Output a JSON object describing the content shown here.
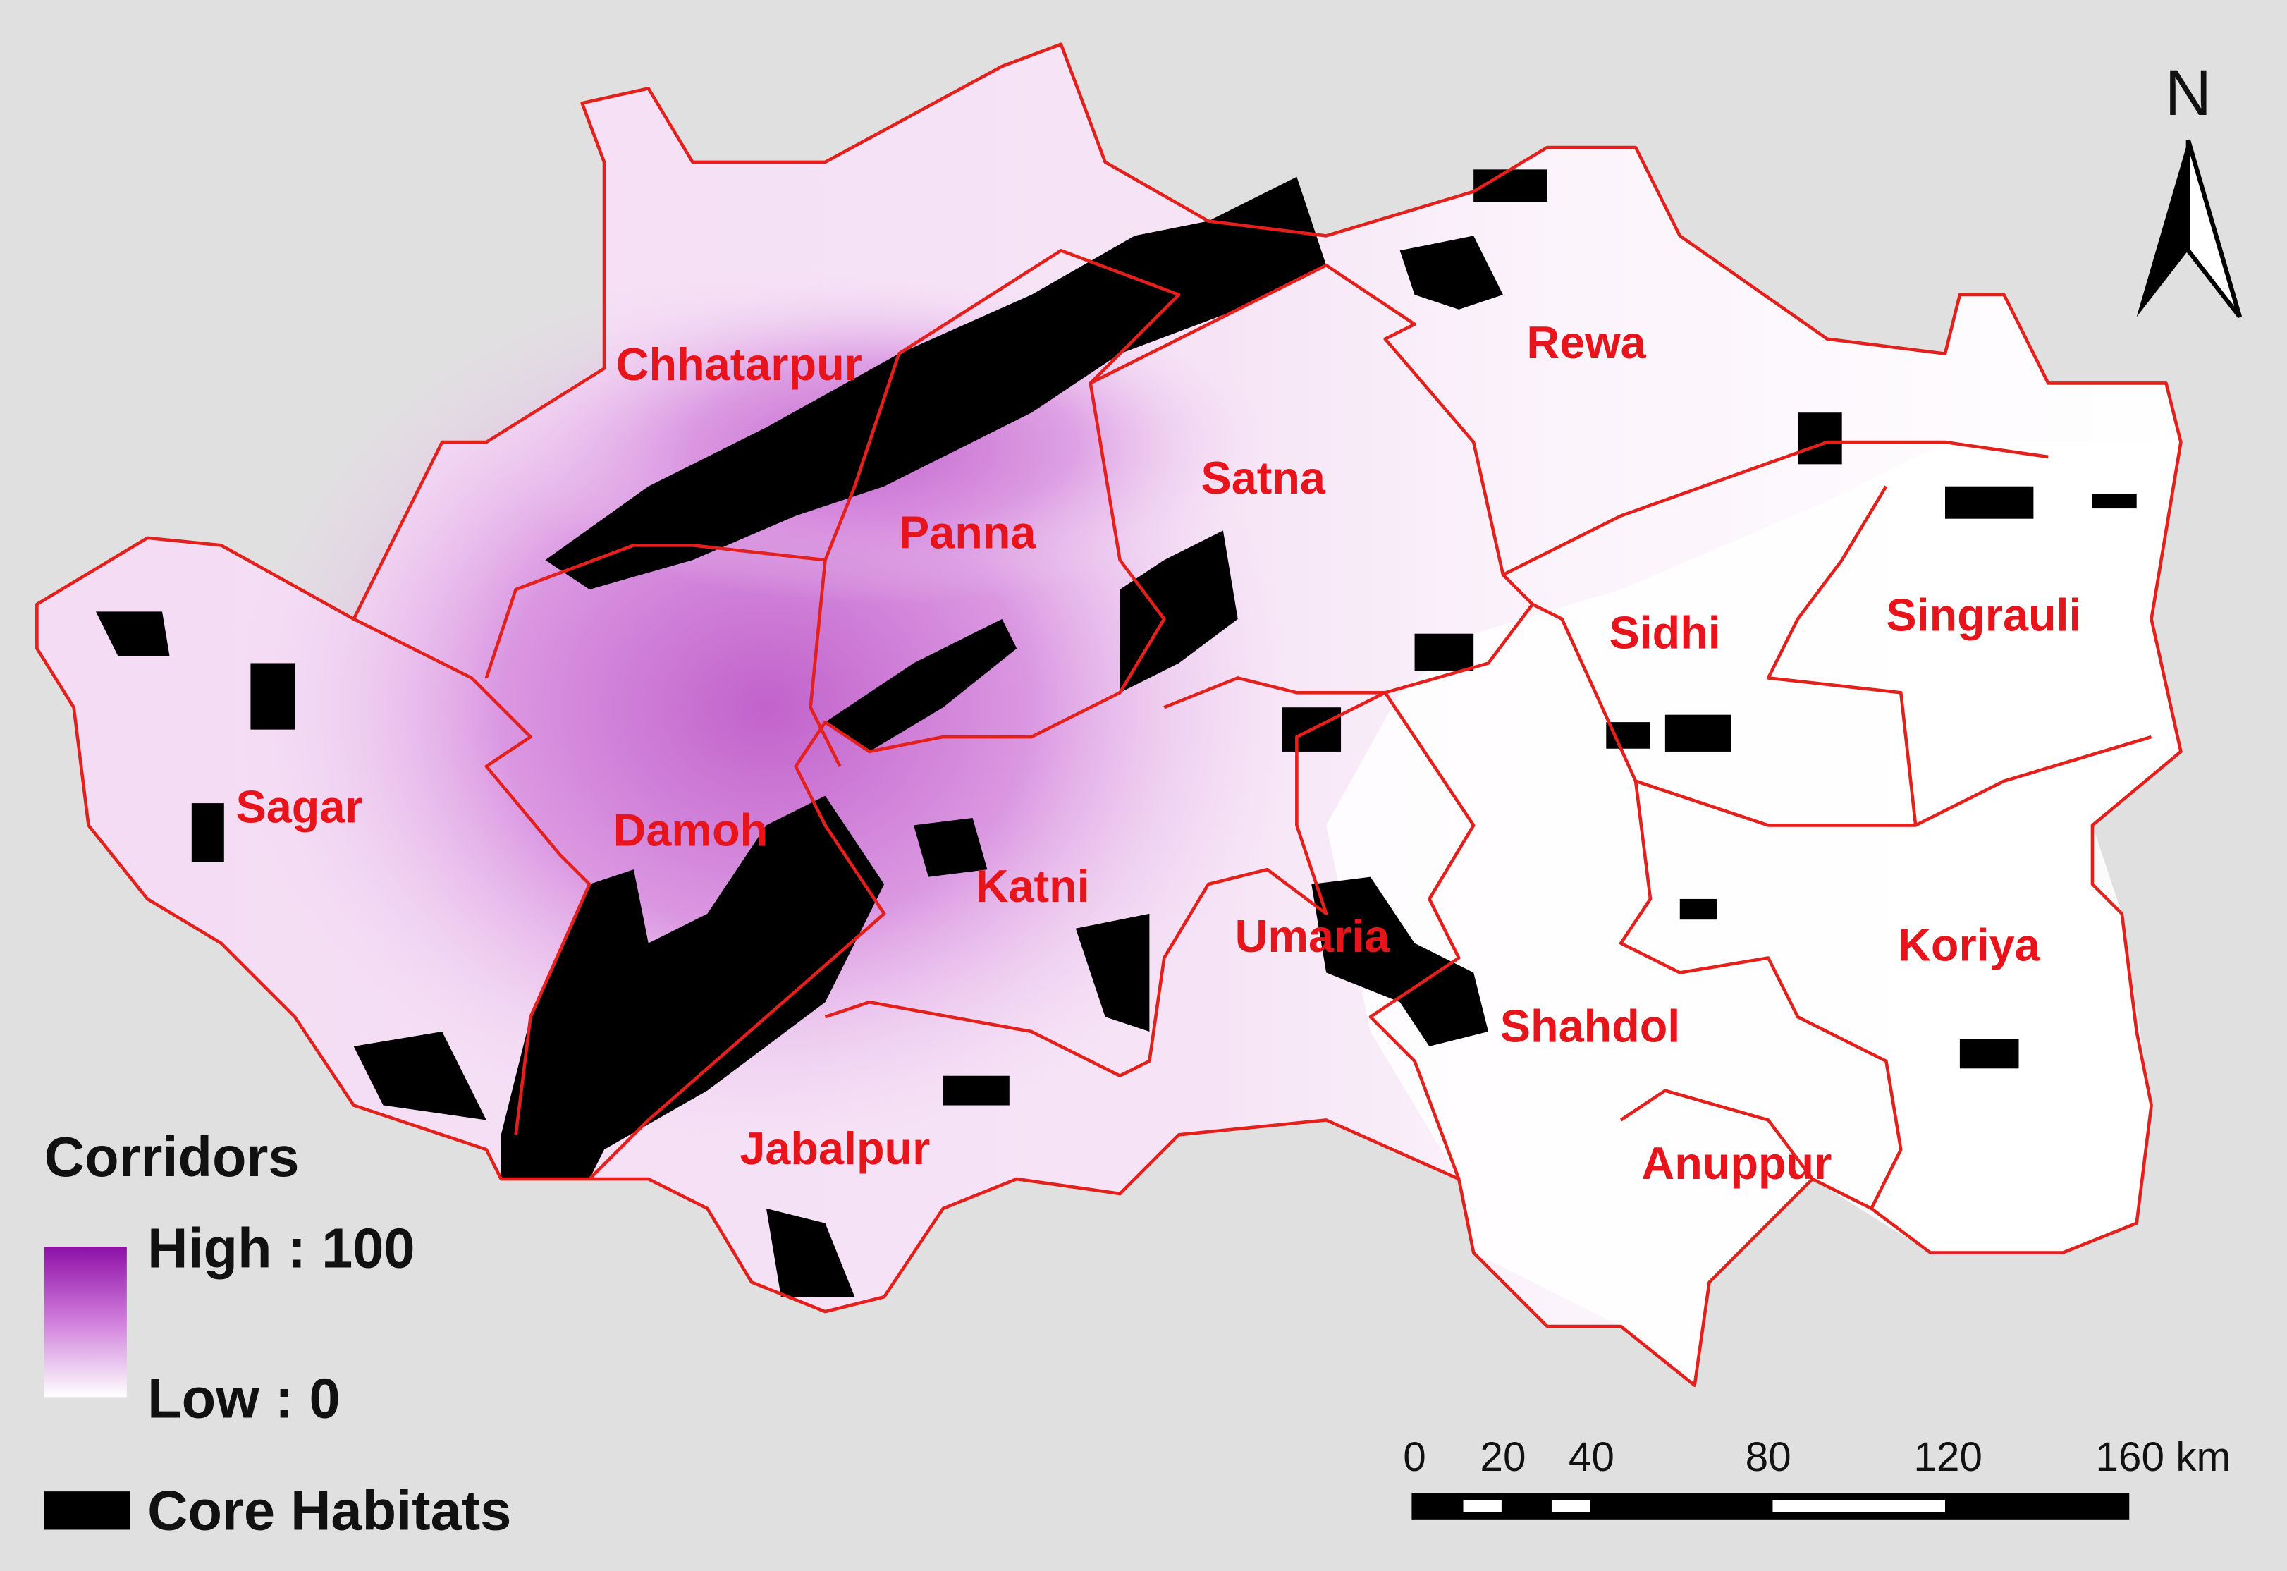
{
  "map": {
    "districts": [
      "Chhatarpur",
      "Rewa",
      "Satna",
      "Panna",
      "Sidhi",
      "Singrauli",
      "Sagar",
      "Damoh",
      "Katni",
      "Umaria",
      "Koriya",
      "Shahdol",
      "Jabalpur",
      "Anuppur"
    ],
    "north": "N"
  },
  "legend": {
    "title": "Corridors",
    "high": "High : 100",
    "low": "Low : 0",
    "core": "Core Habitats"
  },
  "scale_bar": {
    "labels": [
      "0",
      "20",
      "40",
      "80",
      "120",
      "160 km"
    ]
  }
}
